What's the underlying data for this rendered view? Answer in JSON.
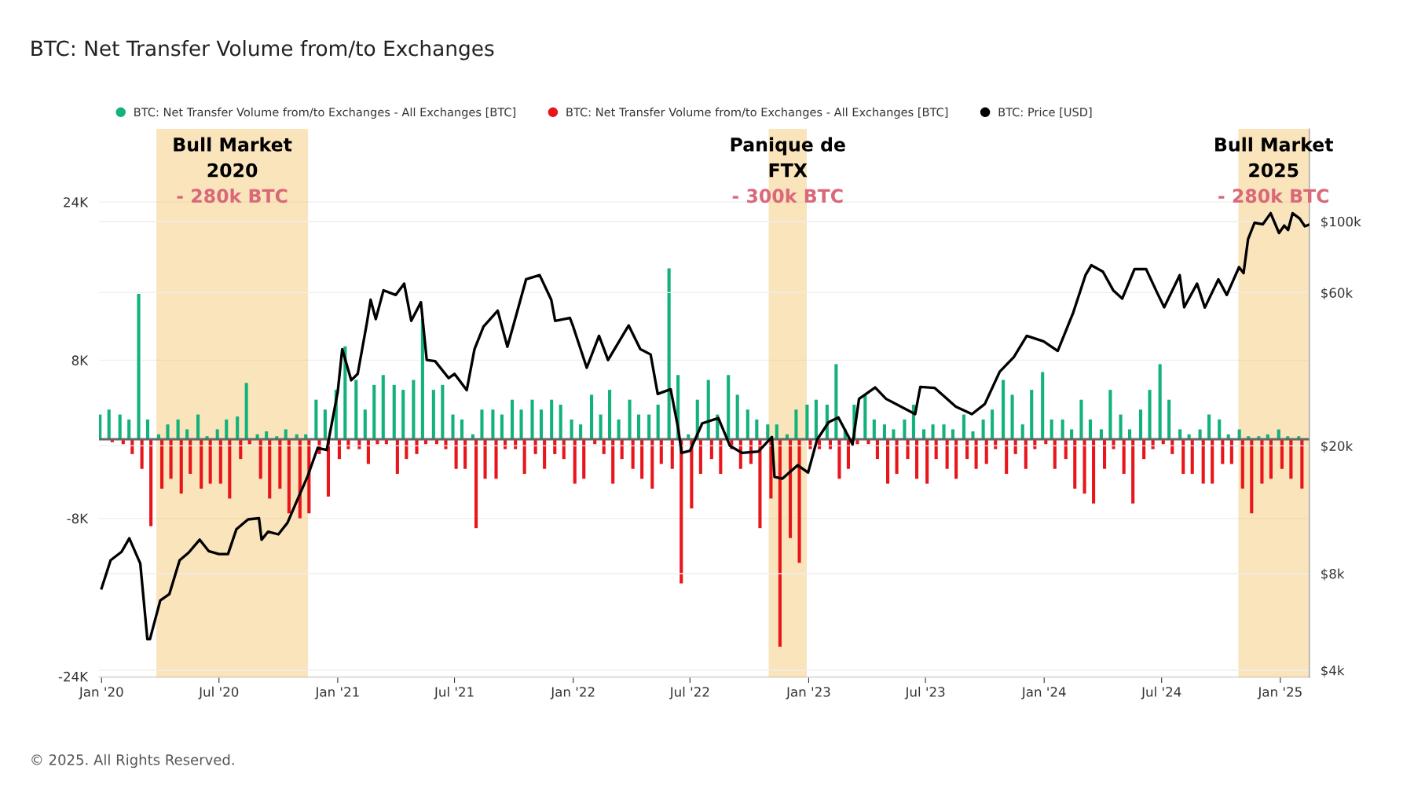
{
  "chart_data": {
    "type": "bar",
    "title": "BTC: Net Transfer Volume from/to Exchanges",
    "x": [
      "2020-01-01",
      "2020-01-15",
      "2020-02-01",
      "2020-02-15",
      "2020-03-01",
      "2020-03-15",
      "2020-04-01",
      "2020-04-15",
      "2020-05-01",
      "2020-05-15",
      "2020-06-01",
      "2020-06-15",
      "2020-07-01",
      "2020-07-15",
      "2020-08-01",
      "2020-08-15",
      "2020-09-01",
      "2020-09-15",
      "2020-10-01",
      "2020-10-15",
      "2020-11-01",
      "2020-11-15",
      "2020-12-01",
      "2020-12-15",
      "2021-01-01",
      "2021-01-15",
      "2021-02-01",
      "2021-02-15",
      "2021-03-01",
      "2021-03-15",
      "2021-04-01",
      "2021-04-15",
      "2021-05-01",
      "2021-05-15",
      "2021-06-01",
      "2021-06-15",
      "2021-07-01",
      "2021-07-15",
      "2021-08-01",
      "2021-08-15",
      "2021-09-01",
      "2021-09-15",
      "2021-10-01",
      "2021-10-15",
      "2021-11-01",
      "2021-11-15",
      "2021-12-01",
      "2021-12-15",
      "2022-01-01",
      "2022-01-15",
      "2022-02-01",
      "2022-02-15",
      "2022-03-01",
      "2022-03-15",
      "2022-04-01",
      "2022-04-15",
      "2022-05-01",
      "2022-05-15",
      "2022-06-01",
      "2022-06-15",
      "2022-07-01",
      "2022-07-15",
      "2022-08-01",
      "2022-08-15",
      "2022-09-01",
      "2022-09-15",
      "2022-10-01",
      "2022-10-15",
      "2022-11-01",
      "2022-11-15",
      "2022-12-01",
      "2022-12-15",
      "2023-01-01",
      "2023-01-15",
      "2023-02-01",
      "2023-02-15",
      "2023-03-01",
      "2023-03-15",
      "2023-04-01",
      "2023-04-15",
      "2023-05-01",
      "2023-05-15",
      "2023-06-01",
      "2023-06-15",
      "2023-07-01",
      "2023-07-15",
      "2023-08-01",
      "2023-08-15",
      "2023-09-01",
      "2023-09-15",
      "2023-10-01",
      "2023-10-15",
      "2023-11-01",
      "2023-11-15",
      "2023-12-01",
      "2023-12-15",
      "2024-01-01",
      "2024-01-15",
      "2024-02-01",
      "2024-02-15",
      "2024-03-01",
      "2024-03-15",
      "2024-04-01",
      "2024-04-15",
      "2024-05-01",
      "2024-05-15",
      "2024-06-01",
      "2024-06-15",
      "2024-07-01",
      "2024-07-15",
      "2024-08-01",
      "2024-08-15",
      "2024-09-01",
      "2024-09-15",
      "2024-10-01",
      "2024-10-15",
      "2024-11-01",
      "2024-11-15",
      "2024-12-01",
      "2024-12-15",
      "2025-01-01",
      "2025-01-15",
      "2025-02-01"
    ],
    "series": [
      {
        "name": "BTC: Net Transfer Volume from/to Exchanges - All Exchanges [BTC]",
        "color": "#12b27a",
        "values": [
          2500,
          3000,
          2500,
          2000,
          14700,
          2000,
          500,
          1500,
          2000,
          1000,
          2500,
          300,
          1000,
          2000,
          2300,
          5700,
          500,
          800,
          300,
          1000,
          500,
          500,
          4000,
          3000,
          5000,
          9400,
          6000,
          3000,
          5500,
          6500,
          5500,
          5000,
          6000,
          12200,
          5000,
          5500,
          2500,
          2000,
          500,
          3000,
          3000,
          2500,
          4000,
          3000,
          4000,
          3000,
          4000,
          3500,
          2000,
          1500,
          4500,
          2500,
          5000,
          2000,
          4000,
          2500,
          2500,
          3500,
          17300,
          6500,
          500,
          4000,
          6000,
          2500,
          6500,
          4500,
          3000,
          2000,
          1500,
          1500,
          500,
          3000,
          3500,
          4000,
          3500,
          7600,
          1000,
          3500,
          4500,
          2000,
          1500,
          1000,
          2000,
          3500,
          1000,
          1500,
          1500,
          1000,
          2500,
          800,
          2000,
          3000,
          6000,
          4500,
          1500,
          5000,
          6800,
          2000,
          2000,
          1000,
          4000,
          2000,
          1000,
          5000,
          2500,
          1000,
          3000,
          5000,
          7600,
          4000,
          1000,
          500,
          1000,
          2500,
          2000,
          500,
          1000,
          300,
          300,
          500,
          1000,
          300,
          300
        ]
      },
      {
        "name": "BTC: Net Transfer Volume from/to Exchanges - All Exchanges [BTC]",
        "color": "#e8151b",
        "values": [
          null,
          -300,
          -500,
          -1500,
          -3000,
          -8800,
          -5000,
          -4000,
          -5500,
          -3500,
          -5000,
          -4500,
          -4500,
          -6000,
          -2000,
          -500,
          -4000,
          -6000,
          -5000,
          -7500,
          -8000,
          -7500,
          -1500,
          -5800,
          -2000,
          -1000,
          -1000,
          -2500,
          -500,
          -500,
          -3500,
          -2000,
          -1500,
          -500,
          -500,
          -1000,
          -3000,
          -3000,
          -9000,
          -4000,
          -4000,
          -1000,
          -1000,
          -3500,
          -1500,
          -3000,
          -1500,
          -2000,
          -4500,
          -4000,
          -500,
          -1500,
          -4500,
          -2000,
          -3000,
          -4000,
          -5000,
          -2500,
          -3000,
          -14600,
          -7000,
          -3500,
          -2000,
          -3500,
          -1000,
          -3000,
          -2500,
          -9000,
          -6000,
          -21000,
          -10000,
          -12500,
          -1000,
          -1000,
          -1000,
          -4000,
          -3000,
          -500,
          -500,
          -2000,
          -4500,
          -3500,
          -2000,
          -4000,
          -4500,
          -2000,
          -3000,
          -4000,
          -2000,
          -3000,
          -2500,
          -1000,
          -3500,
          -1500,
          -3000,
          -1000,
          -500,
          -3000,
          -2000,
          -5000,
          -5500,
          -6500,
          -3000,
          -1000,
          -3500,
          -6500,
          -2000,
          -1000,
          -500,
          -1500,
          -3500,
          -3500,
          -4500,
          -4500,
          -2500,
          -2500,
          -5000,
          -7500,
          -4500,
          -4000,
          -3000,
          -4000,
          -5000
        ]
      },
      {
        "name": "BTC: Price [USD]",
        "type": "line",
        "axis": "y2",
        "color": "#000000",
        "x": [
          "2020-01-01",
          "2020-01-15",
          "2020-02-01",
          "2020-02-13",
          "2020-03-01",
          "2020-03-12",
          "2020-03-16",
          "2020-04-01",
          "2020-04-15",
          "2020-05-01",
          "2020-05-15",
          "2020-06-01",
          "2020-06-15",
          "2020-07-01",
          "2020-07-15",
          "2020-07-28",
          "2020-08-15",
          "2020-09-01",
          "2020-09-05",
          "2020-09-15",
          "2020-10-01",
          "2020-10-15",
          "2020-11-01",
          "2020-11-15",
          "2020-12-01",
          "2020-12-15",
          "2021-01-01",
          "2021-01-08",
          "2021-01-22",
          "2021-02-01",
          "2021-02-15",
          "2021-02-21",
          "2021-03-01",
          "2021-03-13",
          "2021-04-01",
          "2021-04-14",
          "2021-04-25",
          "2021-05-10",
          "2021-05-19",
          "2021-06-01",
          "2021-06-22",
          "2021-07-01",
          "2021-07-20",
          "2021-08-01",
          "2021-08-15",
          "2021-09-06",
          "2021-09-21",
          "2021-10-01",
          "2021-10-20",
          "2021-11-10",
          "2021-11-28",
          "2021-12-04",
          "2021-12-27",
          "2022-01-01",
          "2022-01-22",
          "2022-02-10",
          "2022-02-24",
          "2022-03-28",
          "2022-04-15",
          "2022-05-01",
          "2022-05-12",
          "2022-06-01",
          "2022-06-13",
          "2022-06-18",
          "2022-07-01",
          "2022-07-20",
          "2022-08-14",
          "2022-09-01",
          "2022-09-20",
          "2022-10-15",
          "2022-11-05",
          "2022-11-09",
          "2022-11-21",
          "2022-12-15",
          "2022-12-31",
          "2023-01-14",
          "2023-02-01",
          "2023-02-16",
          "2023-03-10",
          "2023-03-20",
          "2023-04-14",
          "2023-05-01",
          "2023-06-15",
          "2023-06-23",
          "2023-07-15",
          "2023-08-17",
          "2023-09-11",
          "2023-10-01",
          "2023-10-24",
          "2023-11-15",
          "2023-12-05",
          "2023-12-31",
          "2024-01-22",
          "2024-02-15",
          "2024-03-05",
          "2024-03-14",
          "2024-04-01",
          "2024-04-17",
          "2024-05-01",
          "2024-05-20",
          "2024-06-07",
          "2024-06-24",
          "2024-07-05",
          "2024-07-29",
          "2024-08-05",
          "2024-08-25",
          "2024-09-06",
          "2024-09-27",
          "2024-10-10",
          "2024-10-29",
          "2024-11-05",
          "2024-11-12",
          "2024-11-22",
          "2024-12-05",
          "2024-12-17",
          "2024-12-30",
          "2025-01-07",
          "2025-01-13",
          "2025-01-20",
          "2025-01-31",
          "2025-02-08",
          "2025-02-14"
        ],
        "values": [
          7200,
          8800,
          9350,
          10300,
          8600,
          5000,
          5000,
          6600,
          6900,
          8800,
          9300,
          10200,
          9400,
          9200,
          9200,
          11000,
          11800,
          11900,
          10200,
          10800,
          10600,
          11500,
          13800,
          16000,
          19700,
          19400,
          29400,
          40000,
          32000,
          33500,
          48000,
          57000,
          49600,
          61000,
          59000,
          64000,
          49000,
          56000,
          37000,
          36700,
          32500,
          33500,
          29800,
          40000,
          47000,
          52700,
          40700,
          48000,
          66000,
          68000,
          57000,
          49000,
          50000,
          47000,
          35000,
          44000,
          37000,
          47400,
          40000,
          38500,
          29000,
          30000,
          22500,
          19000,
          19300,
          23500,
          24400,
          20000,
          19000,
          19200,
          21300,
          16000,
          15800,
          17400,
          16500,
          20900,
          23700,
          24500,
          20200,
          28000,
          30400,
          28000,
          25100,
          30500,
          30300,
          26500,
          25100,
          27000,
          34000,
          37800,
          44000,
          42300,
          39500,
          52000,
          68000,
          73000,
          69700,
          61000,
          57500,
          71000,
          71000,
          60000,
          54000,
          68000,
          54000,
          64000,
          53900,
          66000,
          59000,
          72000,
          69000,
          88000,
          99000,
          98000,
          106000,
          92000,
          97000,
          94000,
          106000,
          102000,
          96500,
          97500
        ]
      }
    ],
    "xlim": [
      "2019-12-28",
      "2025-02-15"
    ],
    "xticks": [
      {
        "value": "2020-01-01",
        "label": "Jan '20"
      },
      {
        "value": "2020-07-01",
        "label": "Jul '20"
      },
      {
        "value": "2021-01-01",
        "label": "Jan '21"
      },
      {
        "value": "2021-07-01",
        "label": "Jul '21"
      },
      {
        "value": "2022-01-01",
        "label": "Jan '22"
      },
      {
        "value": "2022-07-01",
        "label": "Jul '22"
      },
      {
        "value": "2023-01-01",
        "label": "Jan '23"
      },
      {
        "value": "2023-07-01",
        "label": "Jul '23"
      },
      {
        "value": "2024-01-01",
        "label": "Jan '24"
      },
      {
        "value": "2024-07-01",
        "label": "Jul '24"
      },
      {
        "value": "2025-01-01",
        "label": "Jan '25"
      }
    ],
    "ylim": [
      -24100,
      31400
    ],
    "yticks": [
      {
        "value": -24000,
        "label": "-24K"
      },
      {
        "value": -8000,
        "label": "-8K"
      },
      {
        "value": 8000,
        "label": "8K"
      },
      {
        "value": 24000,
        "label": "24K"
      }
    ],
    "log": "y2",
    "y2lim": [
      3800,
      194000
    ],
    "y2ticks": [
      {
        "value": 4000,
        "label": "$4k"
      },
      {
        "value": 8000,
        "label": "$8k"
      },
      {
        "value": 20000,
        "label": "$20k"
      },
      {
        "value": 60000,
        "label": "$60k"
      },
      {
        "value": 100000,
        "label": "$100k"
      }
    ],
    "ref_lines": [
      {
        "axis": "y",
        "value": 0,
        "color": "#666666"
      }
    ],
    "bands": [
      {
        "axis": "x",
        "from": "2020-03-26",
        "to": "2020-11-16",
        "label": "Bull Market 2020",
        "color": "#f5c46a"
      },
      {
        "axis": "x",
        "from": "2022-10-31",
        "to": "2022-12-29",
        "label": "Panique de FTX",
        "color": "#f5c46a"
      },
      {
        "axis": "x",
        "from": "2024-10-28",
        "to": "2025-02-14",
        "label": "Bull Market 2025",
        "color": "#f5c46a"
      }
    ],
    "annotations": [
      "- 280k BTC",
      "- 300k BTC",
      "- 280k BTC",
      "© 2025. All Rights Reserved."
    ],
    "grid": "y",
    "legend": "top"
  }
}
